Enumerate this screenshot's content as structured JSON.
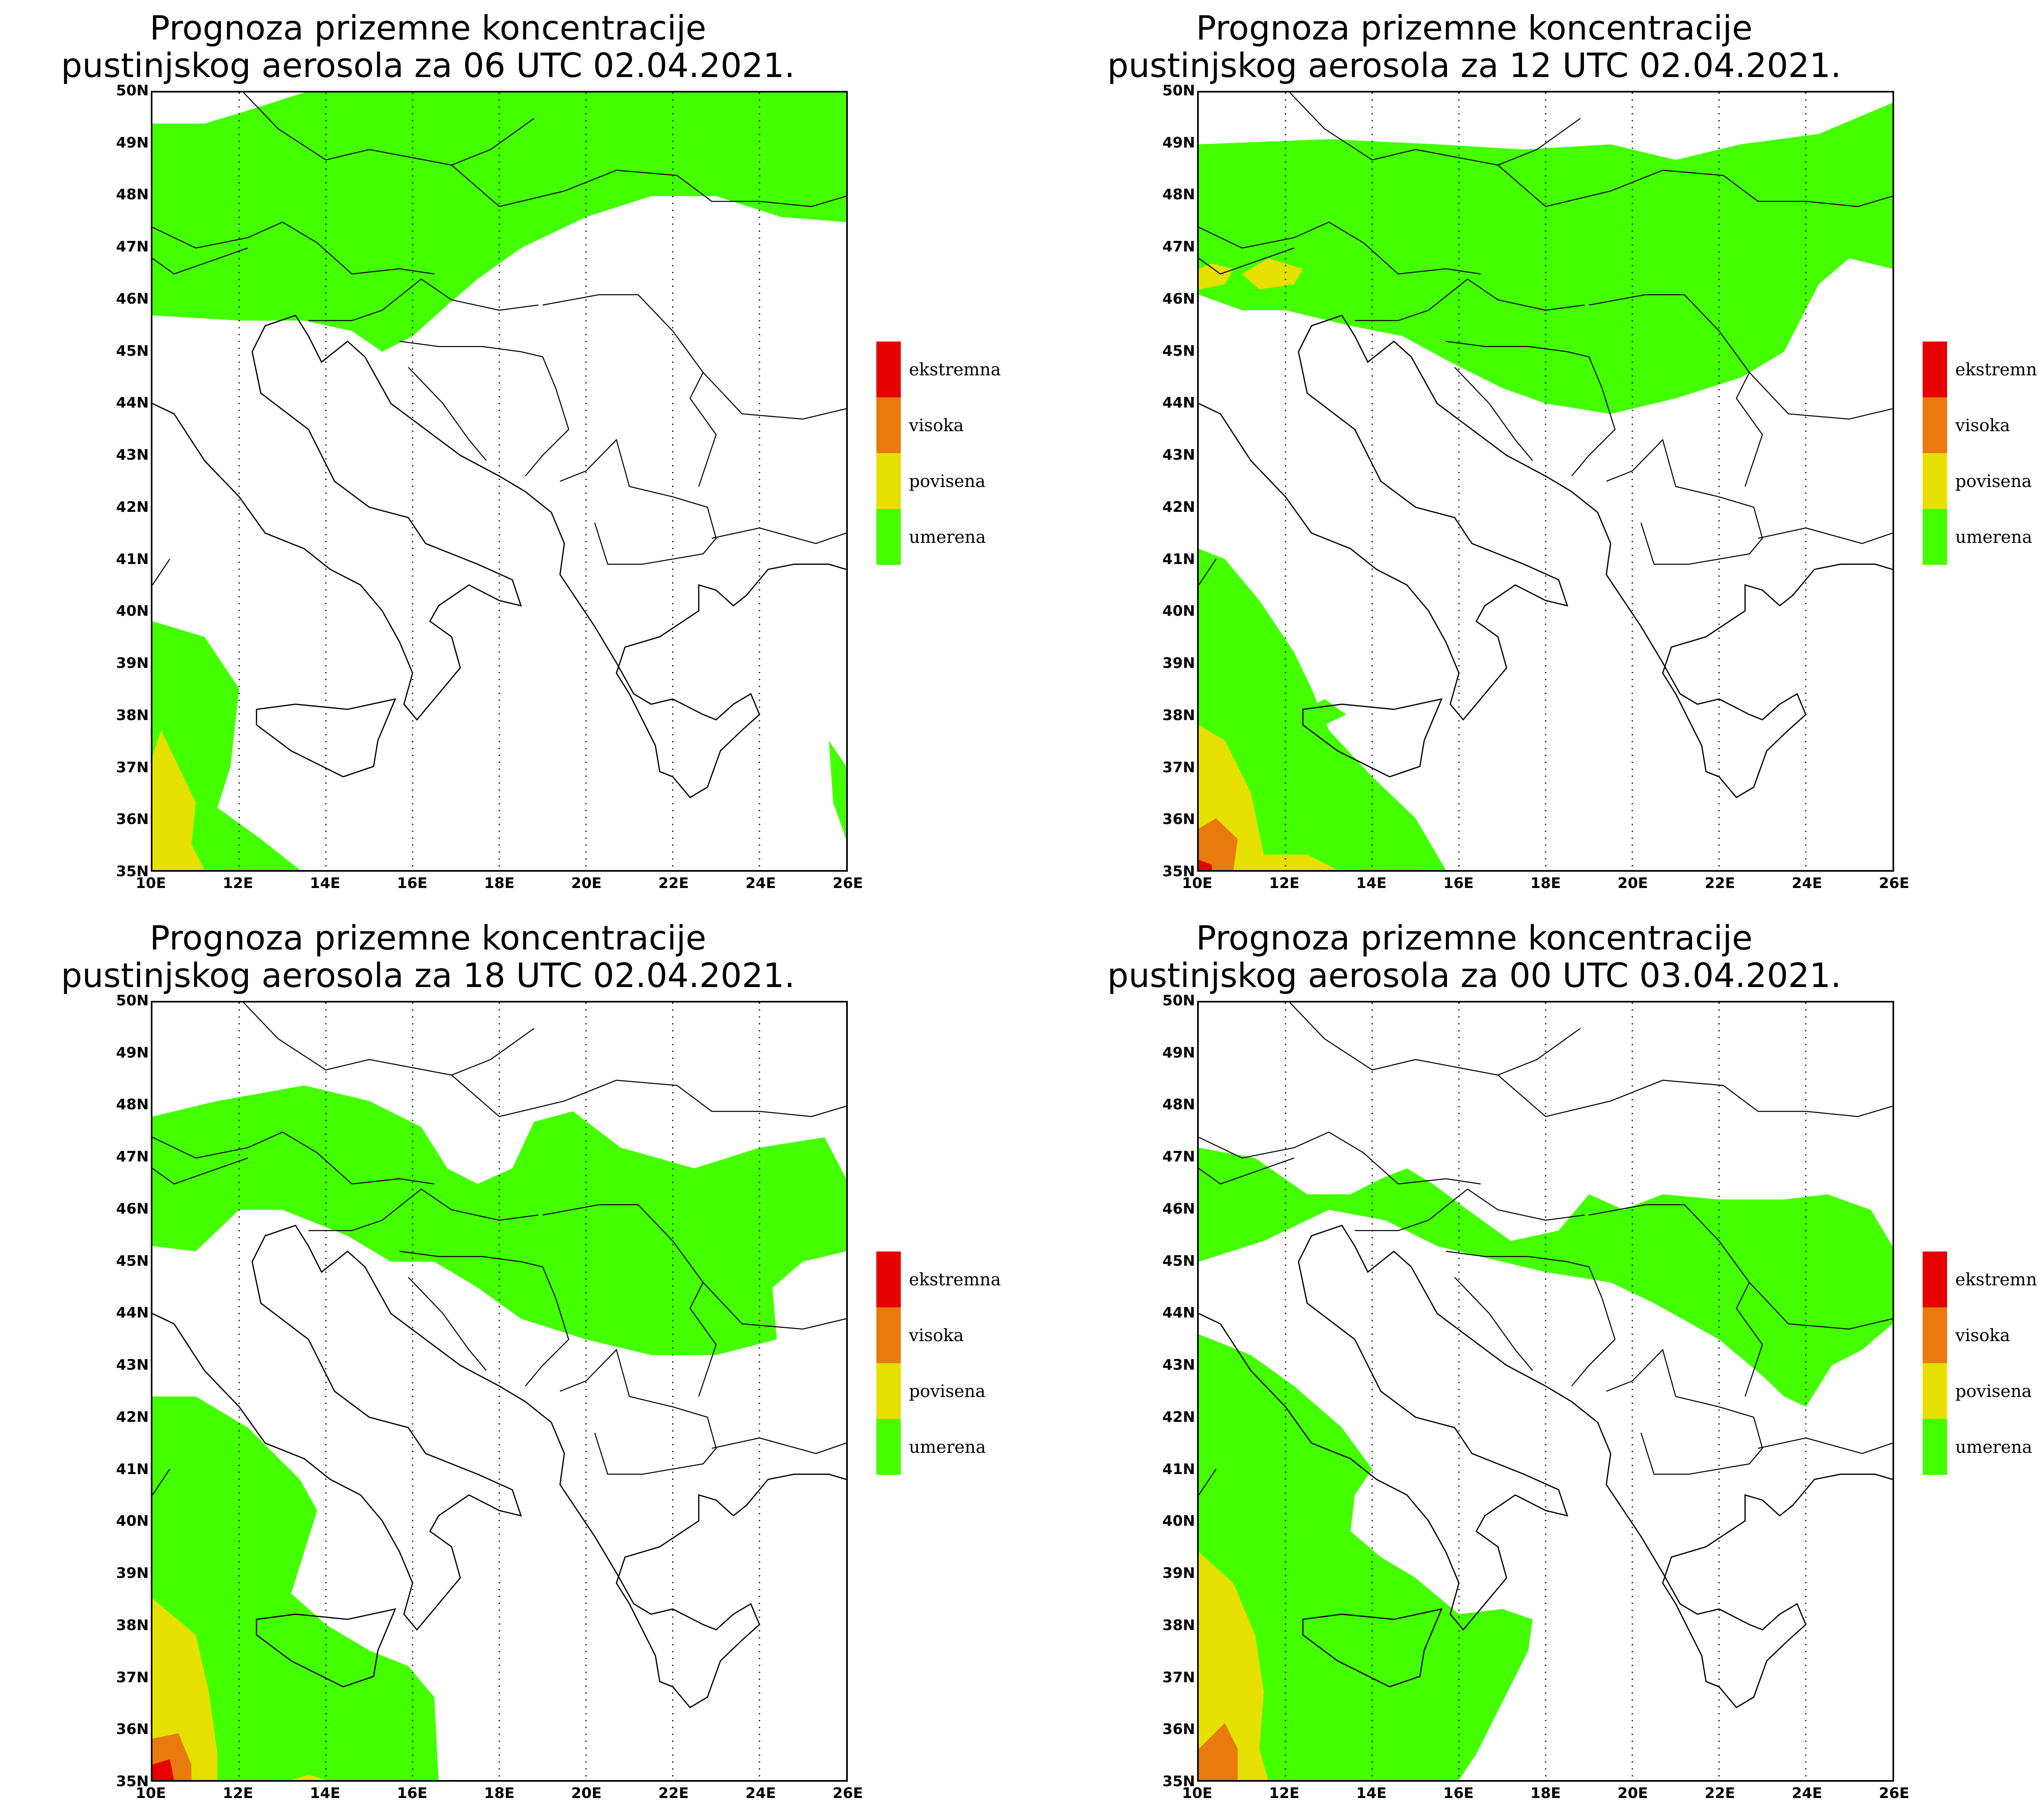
{
  "colors": {
    "ekstremna": "#e60000",
    "visoka": "#e87a0e",
    "povisena": "#e6e000",
    "umerena": "#44ff00"
  },
  "legend": [
    {
      "label": "ekstremna",
      "color": "#e60000"
    },
    {
      "label": "visoka",
      "color": "#e87a0e"
    },
    {
      "label": "povisena",
      "color": "#e6e000"
    },
    {
      "label": "umerena",
      "color": "#44ff00"
    }
  ],
  "axes": {
    "x_ticks": [
      "10E",
      "12E",
      "14E",
      "16E",
      "18E",
      "20E",
      "22E",
      "24E",
      "26E"
    ],
    "y_ticks": [
      "50N",
      "49N",
      "48N",
      "47N",
      "46N",
      "45N",
      "44N",
      "43N",
      "42N",
      "41N",
      "40N",
      "39N",
      "38N",
      "37N",
      "36N",
      "35N"
    ],
    "lon_range": [
      10,
      26
    ],
    "lat_range": [
      35,
      50
    ]
  },
  "panels": [
    {
      "title_line1": "Prognoza prizemne koncentracije",
      "title_line2": "pustinjskog aerosola za 06 UTC 02.04.2021."
    },
    {
      "title_line1": "Prognoza prizemne koncentracije",
      "title_line2": "pustinjskog aerosola za 12 UTC 02.04.2021."
    },
    {
      "title_line1": "Prognoza prizemne koncentracije",
      "title_line2": "pustinjskog aerosola za 18 UTC 02.04.2021."
    },
    {
      "title_line1": "Prognoza prizemne koncentracije",
      "title_line2": "pustinjskog aerosola za 00 UTC 03.04.2021."
    }
  ]
}
